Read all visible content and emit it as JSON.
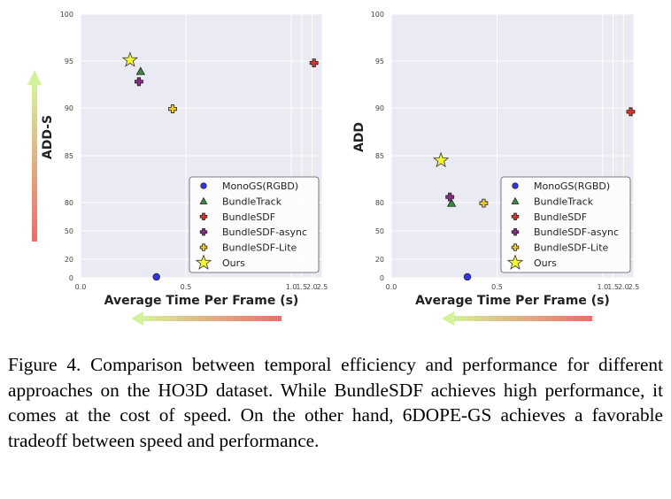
{
  "chart_data": [
    {
      "type": "scatter",
      "ylabel": "ADD-S",
      "xlabel": "Average Time Per Frame (s)",
      "yticks": [
        "100",
        "95",
        "90",
        "85",
        "80",
        "50",
        "20",
        "0"
      ],
      "xticks": [
        "0.0",
        "0.5",
        "1.0",
        "1.5",
        "2.0",
        "2.5"
      ],
      "grid": true,
      "legend_position": "lower-right",
      "series": [
        {
          "name": "MonoGS(RGBD)",
          "marker": "circle",
          "color": "#3333ee",
          "x": 0.36,
          "y": 1
        },
        {
          "name": "BundleTrack",
          "marker": "triangle",
          "color": "#3a8a3a",
          "x": 0.285,
          "y": 93.9
        },
        {
          "name": "BundleSDF",
          "marker": "plus",
          "color": "#e03030",
          "x": 2.1,
          "y": 94.8
        },
        {
          "name": "BundleSDF-async",
          "marker": "plus",
          "color": "#8a2b8a",
          "x": 0.277,
          "y": 92.8
        },
        {
          "name": "BundleSDF-Lite",
          "marker": "plus",
          "color": "#f0c830",
          "x": 0.437,
          "y": 89.9
        },
        {
          "name": "Ours",
          "marker": "star",
          "color": "#f5f530",
          "x": 0.235,
          "y": 95.1
        }
      ]
    },
    {
      "type": "scatter",
      "ylabel": "ADD",
      "xlabel": "Average Time Per Frame (s)",
      "yticks": [
        "100",
        "95",
        "90",
        "85",
        "80",
        "50",
        "20",
        "0"
      ],
      "xticks": [
        "0.0",
        "0.5",
        "1.0",
        "1.5",
        "2.0",
        "2.5"
      ],
      "grid": true,
      "legend_position": "lower-right",
      "series": [
        {
          "name": "MonoGS(RGBD)",
          "marker": "circle",
          "color": "#3333ee",
          "x": 0.36,
          "y": 1
        },
        {
          "name": "BundleTrack",
          "marker": "triangle",
          "color": "#3a8a3a",
          "x": 0.285,
          "y": 79.4
        },
        {
          "name": "BundleSDF",
          "marker": "plus",
          "color": "#e03030",
          "x": 2.35,
          "y": 89.6
        },
        {
          "name": "BundleSDF-async",
          "marker": "plus",
          "color": "#8a2b8a",
          "x": 0.277,
          "y": 80.6
        },
        {
          "name": "BundleSDF-Lite",
          "marker": "plus",
          "color": "#f0c830",
          "x": 0.437,
          "y": 79.4
        },
        {
          "name": "Ours",
          "marker": "star",
          "color": "#f5f530",
          "x": 0.235,
          "y": 84.5
        }
      ]
    }
  ],
  "caption": "Figure 4. Comparison between temporal efficiency and performance for different approaches on the HO3D dataset. While BundleSDF achieves high performance, it comes at the cost of speed. On the other hand, 6DOPE-GS achieves a favorable tradeoff between speed and performance.",
  "colors": {
    "arrow_good": "#d4f29a",
    "arrow_bad": "#ec6c6c",
    "plot_bg": "#eaeaf2"
  }
}
